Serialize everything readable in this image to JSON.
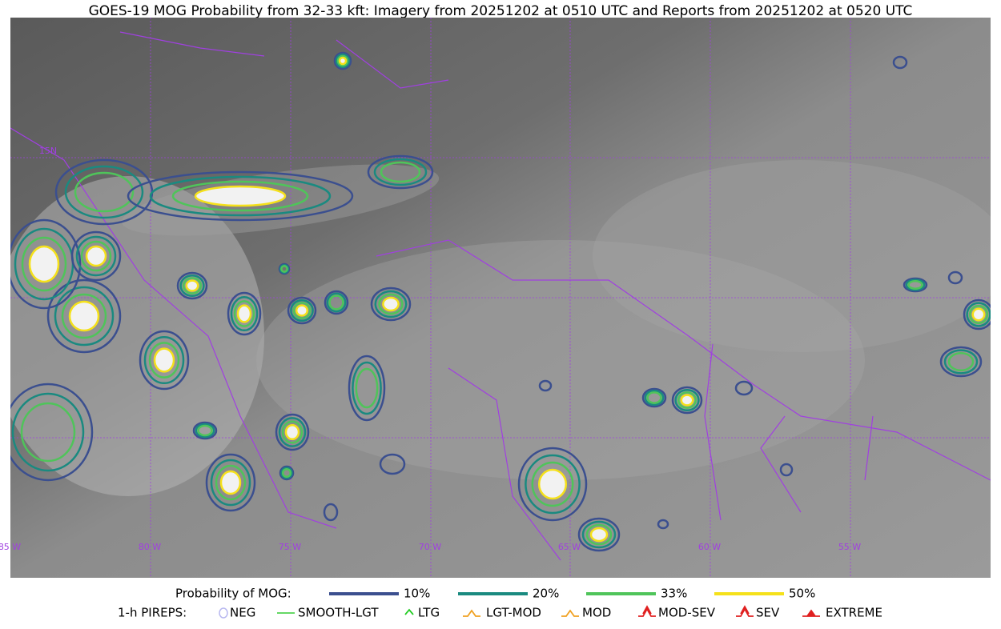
{
  "title": "GOES-19 MOG Probability from 32-33 kft: Imagery from 20251202 at 0510 UTC and Reports from 20251202 at 0520 UTC",
  "lon_labels": [
    "85 W",
    "80 W",
    "75 W",
    "70 W",
    "65 W",
    "60 W",
    "55 W"
  ],
  "lat_labels": [
    "15N"
  ],
  "legend": {
    "probability": {
      "label": "Probability of MOG:",
      "items": [
        {
          "label": "10%",
          "color": "#3b4f8f"
        },
        {
          "label": "20%",
          "color": "#1a8a80"
        },
        {
          "label": "33%",
          "color": "#4fc45a"
        },
        {
          "label": "50%",
          "color": "#f5e11a"
        }
      ]
    },
    "pireps": {
      "label": "1-h PIREPS:",
      "items": [
        {
          "label": "NEG",
          "color": "#b8b8f0"
        },
        {
          "label": "SMOOTH-LGT",
          "color": "#33cc33"
        },
        {
          "label": "LTG",
          "color": "#22cc22"
        },
        {
          "label": "LGT-MOD",
          "color": "#f0a020"
        },
        {
          "label": "MOD",
          "color": "#f0a020"
        },
        {
          "label": "MOD-SEV",
          "color": "#e02020"
        },
        {
          "label": "SEV",
          "color": "#e02020"
        },
        {
          "label": "EXTREME",
          "color": "#e02020"
        }
      ]
    }
  }
}
